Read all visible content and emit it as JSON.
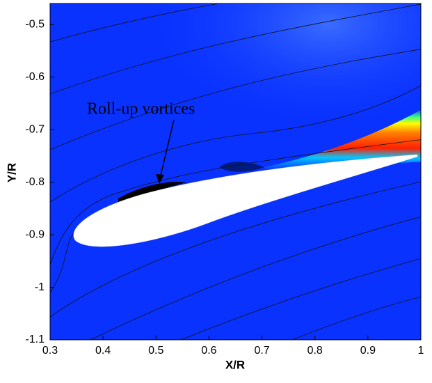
{
  "chart_data": {
    "type": "contour",
    "x_label": "X/R",
    "y_label": "Y/R",
    "annotation": "Roll-up vortices",
    "xlim": [
      0.3,
      1
    ],
    "ylim": [
      -1.1,
      -0.46
    ],
    "xticks": [
      0.3,
      0.4,
      0.5,
      0.6,
      0.7,
      0.8,
      0.9,
      1
    ],
    "yticks": [
      -1.1,
      -1,
      -0.9,
      -0.8,
      -0.7,
      -0.6,
      -0.5
    ],
    "color": "#0a32ff"
  }
}
